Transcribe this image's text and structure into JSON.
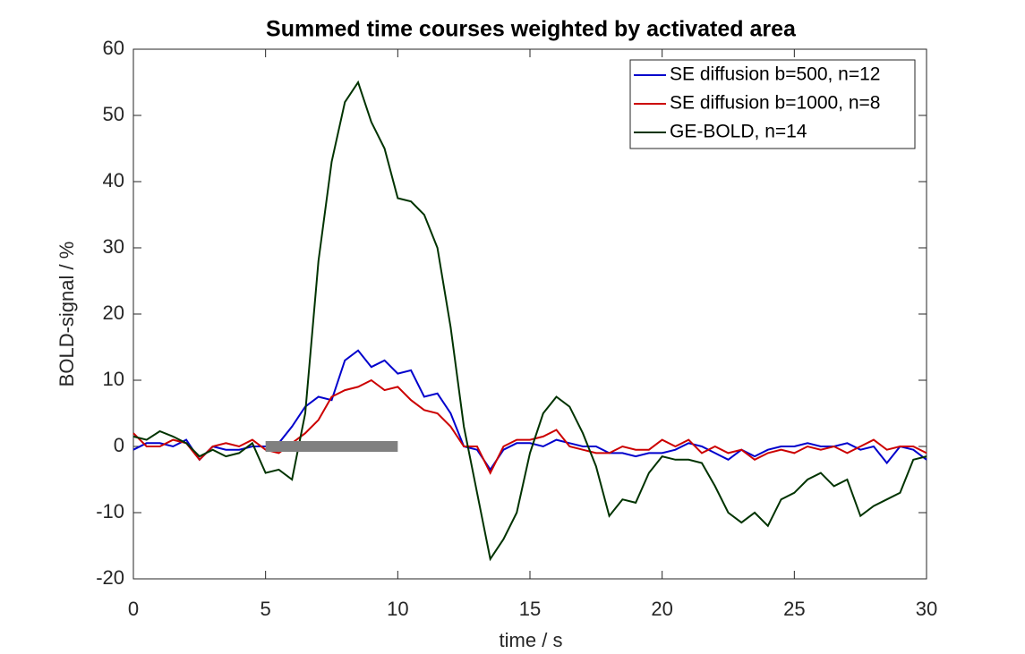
{
  "chart_data": {
    "type": "line",
    "title": "Summed time courses weighted by activated area",
    "xlabel": "time / s",
    "ylabel": "BOLD-signal / %",
    "x": [
      0,
      0.5,
      1,
      1.5,
      2,
      2.5,
      3,
      3.5,
      4,
      4.5,
      5,
      5.5,
      6,
      6.5,
      7,
      7.5,
      8,
      8.5,
      9,
      9.5,
      10,
      10.5,
      11,
      11.5,
      12,
      12.5,
      13,
      13.5,
      14,
      14.5,
      15,
      15.5,
      16,
      16.5,
      17,
      17.5,
      18,
      18.5,
      19,
      19.5,
      20,
      20.5,
      21,
      21.5,
      22,
      22.5,
      23,
      23.5,
      24,
      24.5,
      25,
      25.5,
      26,
      26.5,
      27,
      27.5,
      28,
      28.5,
      29,
      29.5,
      30
    ],
    "series": [
      {
        "name": "SE diffusion b=500, n=12",
        "color": "#0000cc",
        "values": [
          -0.5,
          0.5,
          0.5,
          0,
          1,
          -2,
          0,
          -0.5,
          -0.5,
          0,
          0,
          0.5,
          3,
          6,
          7.5,
          7,
          13,
          14.5,
          12,
          13,
          11,
          11.5,
          7.5,
          8,
          5,
          0,
          -0.5,
          -3.5,
          -0.5,
          0.5,
          0.5,
          0,
          1,
          0.5,
          0,
          0,
          -1,
          -1,
          -1.5,
          -1,
          -1,
          -0.5,
          0.5,
          0,
          -1,
          -2,
          -0.5,
          -1.5,
          -0.5,
          0,
          0,
          0.5,
          0,
          0,
          0.5,
          -0.5,
          0,
          -2.5,
          0,
          -0.5,
          -2
        ]
      },
      {
        "name": "SE diffusion b=1000, n=8",
        "color": "#cc0000",
        "values": [
          2,
          0,
          0,
          1,
          0.5,
          -2,
          0,
          0.5,
          0,
          1,
          -0.5,
          -1,
          0.5,
          2,
          4,
          7.5,
          8.5,
          9,
          10,
          8.5,
          9,
          7,
          5.5,
          5,
          3,
          0,
          0,
          -4,
          0,
          1,
          1,
          1.5,
          2.5,
          0,
          -0.5,
          -1,
          -1,
          0,
          -0.5,
          -0.5,
          1,
          0,
          1,
          -1,
          0,
          -1,
          -0.5,
          -2,
          -1,
          -0.5,
          -1,
          0,
          -0.5,
          0,
          -1,
          0,
          1,
          -0.5,
          0,
          0,
          -1
        ]
      },
      {
        "name": "GE-BOLD, n=14",
        "color": "#003300",
        "values": [
          1.5,
          1,
          2.3,
          1.5,
          0.5,
          -1.5,
          -0.5,
          -1.5,
          -1,
          0.5,
          -4,
          -3.5,
          -5,
          5,
          28,
          43,
          52,
          55,
          49,
          45,
          37.5,
          37,
          35,
          30,
          18,
          3,
          -7,
          -17,
          -14,
          -10,
          -1,
          5,
          7.5,
          6,
          2,
          -3,
          -10.5,
          -8,
          -8.5,
          -4,
          -1.5,
          -2,
          -2,
          -2.5,
          -6,
          -10,
          -11.5,
          -10,
          -12,
          -8,
          -7,
          -5,
          -4,
          -6,
          -5,
          -10.5,
          -9,
          -8,
          -7,
          -2,
          -1.5
        ]
      }
    ],
    "stimulus_x": [
      5,
      10
    ],
    "stimulus_y": 0,
    "stimulus_color": "#808080",
    "xlim": [
      0,
      30
    ],
    "xticks": [
      0,
      5,
      10,
      15,
      20,
      25,
      30
    ],
    "ylim": [
      -20,
      60
    ],
    "yticks": [
      -20,
      -10,
      0,
      10,
      20,
      30,
      40,
      50,
      60
    ],
    "grid": false,
    "legend": "upper right"
  }
}
